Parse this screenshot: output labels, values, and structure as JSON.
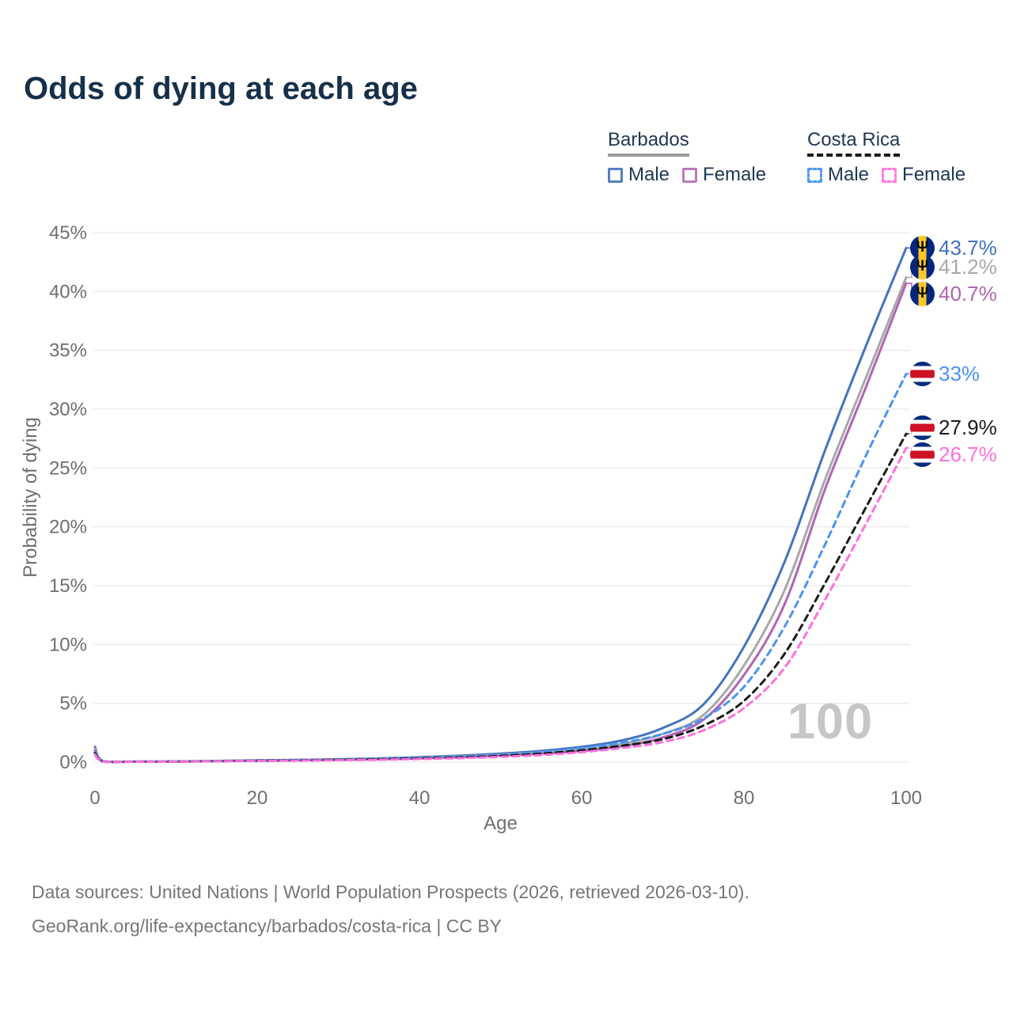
{
  "title": "Odds of dying at each age",
  "legend": {
    "groups": [
      {
        "name": "Barbados",
        "underline_style": "solid",
        "underline_color": "#9b9b9b",
        "items": [
          {
            "label": "Male",
            "color": "#5580c2",
            "dashed": false
          },
          {
            "label": "Female",
            "color": "#bb79bd",
            "dashed": false
          }
        ]
      },
      {
        "name": "Costa Rica",
        "underline_style": "dashed",
        "underline_color": "#1b1b1b",
        "items": [
          {
            "label": "Male",
            "color": "#4f97f7",
            "dashed": true
          },
          {
            "label": "Female",
            "color": "#ff7ce0",
            "dashed": true
          }
        ]
      }
    ]
  },
  "chart_data": {
    "type": "line",
    "xlabel": "Age",
    "ylabel": "Probability of dying",
    "x_ticks": [
      0,
      20,
      40,
      60,
      80,
      100
    ],
    "y_ticks": [
      0,
      5,
      10,
      15,
      20,
      25,
      30,
      35,
      40,
      45
    ],
    "xlim": [
      0,
      100
    ],
    "ylim": [
      0,
      45
    ],
    "grid": true,
    "legend_position": "top-right",
    "watermark": "100",
    "x": [
      0,
      1,
      5,
      10,
      15,
      20,
      25,
      30,
      35,
      40,
      45,
      50,
      55,
      60,
      65,
      70,
      75,
      80,
      85,
      90,
      95,
      100
    ],
    "series": [
      {
        "name": "Barbados Male",
        "color": "#4273bf",
        "dash": false,
        "end_label": "43.7%",
        "flag": "barbados-flag-icon",
        "values": [
          1.3,
          0.09,
          0.05,
          0.06,
          0.1,
          0.15,
          0.19,
          0.24,
          0.31,
          0.42,
          0.55,
          0.72,
          0.95,
          1.3,
          1.85,
          2.9,
          4.9,
          9.8,
          17.0,
          26.5,
          35.3,
          43.7
        ]
      },
      {
        "name": "Barbados Both sexes",
        "color": "#a8a8a8",
        "dash": false,
        "end_label": "41.2%",
        "flag": "barbados-flag-icon",
        "values": [
          1.15,
          0.08,
          0.045,
          0.055,
          0.09,
          0.13,
          0.17,
          0.21,
          0.27,
          0.36,
          0.48,
          0.63,
          0.83,
          1.1,
          1.55,
          2.4,
          4.0,
          8.2,
          14.6,
          24.0,
          32.6,
          41.2
        ]
      },
      {
        "name": "Barbados Female",
        "color": "#b164b4",
        "dash": false,
        "end_label": "40.7%",
        "flag": "barbados-flag-icon",
        "values": [
          1.0,
          0.07,
          0.04,
          0.05,
          0.08,
          0.11,
          0.15,
          0.19,
          0.24,
          0.32,
          0.43,
          0.56,
          0.73,
          0.95,
          1.35,
          2.1,
          3.6,
          7.4,
          13.4,
          23.2,
          31.8,
          40.7
        ]
      },
      {
        "name": "Costa Rica Male",
        "color": "#4b93f0",
        "dash": true,
        "end_label": "33%",
        "flag": "costa-rica-flag-icon",
        "values": [
          0.85,
          0.07,
          0.04,
          0.05,
          0.09,
          0.14,
          0.18,
          0.22,
          0.28,
          0.36,
          0.47,
          0.62,
          0.85,
          1.2,
          1.65,
          2.4,
          3.7,
          6.4,
          11.5,
          18.5,
          26.0,
          33.0
        ]
      },
      {
        "name": "Costa Rica Both sexes",
        "color": "#1b1b1b",
        "dash": true,
        "end_label": "27.9%",
        "flag": "costa-rica-flag-icon",
        "values": [
          0.75,
          0.06,
          0.035,
          0.045,
          0.08,
          0.12,
          0.15,
          0.19,
          0.24,
          0.31,
          0.4,
          0.53,
          0.72,
          1.0,
          1.4,
          1.95,
          3.1,
          5.2,
          9.2,
          15.2,
          21.6,
          27.9
        ]
      },
      {
        "name": "Costa Rica Female",
        "color": "#ff70dd",
        "dash": true,
        "end_label": "26.7%",
        "flag": "costa-rica-flag-icon",
        "values": [
          0.65,
          0.055,
          0.03,
          0.04,
          0.07,
          0.1,
          0.13,
          0.16,
          0.2,
          0.26,
          0.34,
          0.45,
          0.6,
          0.85,
          1.2,
          1.7,
          2.7,
          4.6,
          8.0,
          13.8,
          20.2,
          26.7
        ]
      }
    ]
  },
  "footer": {
    "line1": "Data sources: United Nations | World Population Prospects (2026, retrieved 2026-03-10).",
    "line2": "GeoRank.org/life-expectancy/barbados/costa-rica | CC BY"
  }
}
